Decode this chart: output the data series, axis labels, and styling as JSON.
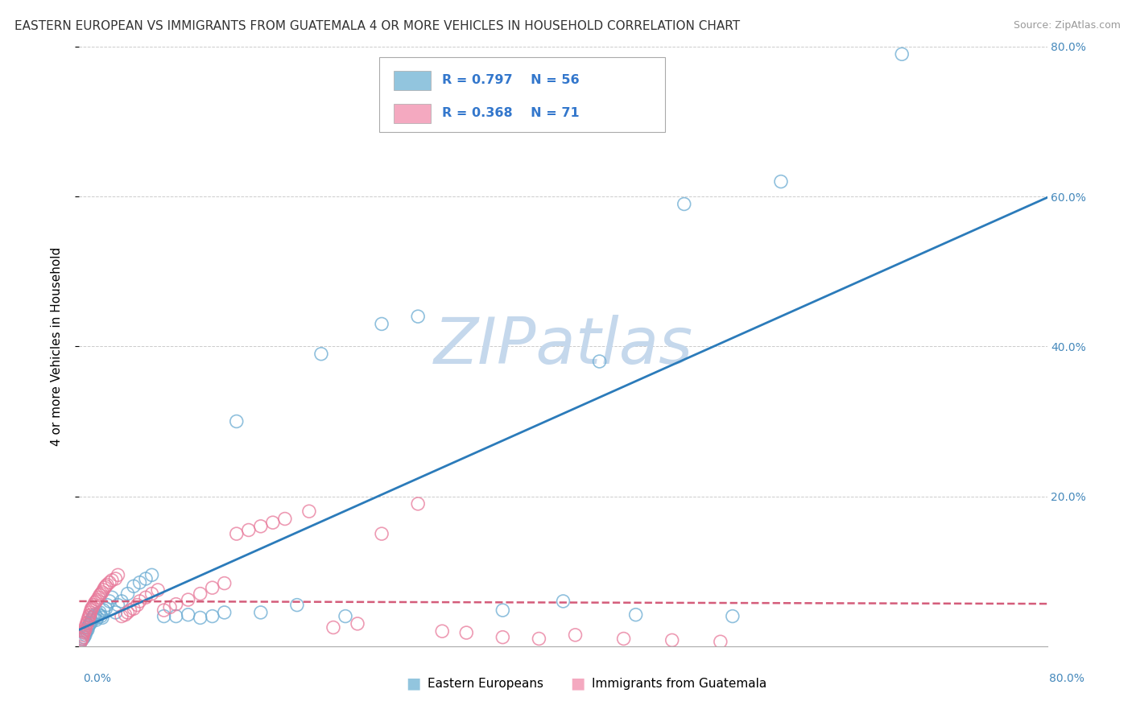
{
  "title": "EASTERN EUROPEAN VS IMMIGRANTS FROM GUATEMALA 4 OR MORE VEHICLES IN HOUSEHOLD CORRELATION CHART",
  "source": "Source: ZipAtlas.com",
  "ylabel": "4 or more Vehicles in Household",
  "xlim": [
    0.0,
    0.8
  ],
  "ylim": [
    0.0,
    0.8
  ],
  "yticks": [
    0.0,
    0.2,
    0.4,
    0.6,
    0.8
  ],
  "ytick_labels": [
    "",
    "20.0%",
    "40.0%",
    "60.0%",
    "80.0%"
  ],
  "watermark": "ZIPatlas",
  "blue": {
    "label": "Eastern Europeans",
    "R": 0.797,
    "N": 56,
    "scatter_facecolor": "none",
    "scatter_edgecolor": "#6aabd2",
    "line_color": "#2b7bba",
    "line_style": "solid",
    "x": [
      0.001,
      0.002,
      0.003,
      0.004,
      0.005,
      0.005,
      0.006,
      0.007,
      0.007,
      0.008,
      0.009,
      0.01,
      0.01,
      0.011,
      0.012,
      0.013,
      0.014,
      0.015,
      0.016,
      0.017,
      0.018,
      0.019,
      0.02,
      0.022,
      0.023,
      0.025,
      0.027,
      0.03,
      0.032,
      0.035,
      0.04,
      0.045,
      0.05,
      0.055,
      0.06,
      0.07,
      0.08,
      0.09,
      0.1,
      0.11,
      0.12,
      0.13,
      0.15,
      0.18,
      0.2,
      0.22,
      0.25,
      0.28,
      0.35,
      0.4,
      0.43,
      0.46,
      0.5,
      0.54,
      0.58,
      0.68
    ],
    "y": [
      0.005,
      0.008,
      0.01,
      0.012,
      0.015,
      0.018,
      0.02,
      0.022,
      0.025,
      0.028,
      0.03,
      0.032,
      0.035,
      0.038,
      0.04,
      0.042,
      0.035,
      0.038,
      0.042,
      0.045,
      0.04,
      0.038,
      0.048,
      0.05,
      0.055,
      0.06,
      0.065,
      0.045,
      0.055,
      0.06,
      0.07,
      0.08,
      0.085,
      0.09,
      0.095,
      0.04,
      0.04,
      0.042,
      0.038,
      0.04,
      0.045,
      0.3,
      0.045,
      0.055,
      0.39,
      0.04,
      0.43,
      0.44,
      0.048,
      0.06,
      0.38,
      0.042,
      0.59,
      0.04,
      0.62,
      0.79
    ]
  },
  "pink": {
    "label": "Immigrants from Guatemala",
    "R": 0.368,
    "N": 71,
    "scatter_facecolor": "none",
    "scatter_edgecolor": "#e8799a",
    "line_color": "#d45c7a",
    "line_style": "dashed",
    "x": [
      0.001,
      0.002,
      0.002,
      0.003,
      0.003,
      0.004,
      0.004,
      0.005,
      0.005,
      0.006,
      0.006,
      0.007,
      0.007,
      0.008,
      0.008,
      0.009,
      0.009,
      0.01,
      0.01,
      0.011,
      0.012,
      0.013,
      0.014,
      0.015,
      0.016,
      0.017,
      0.018,
      0.019,
      0.02,
      0.021,
      0.022,
      0.023,
      0.025,
      0.027,
      0.03,
      0.032,
      0.035,
      0.038,
      0.04,
      0.042,
      0.045,
      0.048,
      0.05,
      0.055,
      0.06,
      0.065,
      0.07,
      0.075,
      0.08,
      0.09,
      0.1,
      0.11,
      0.12,
      0.13,
      0.14,
      0.15,
      0.16,
      0.17,
      0.19,
      0.21,
      0.23,
      0.25,
      0.28,
      0.3,
      0.32,
      0.35,
      0.38,
      0.41,
      0.45,
      0.49,
      0.53
    ],
    "y": [
      0.005,
      0.008,
      0.01,
      0.012,
      0.015,
      0.018,
      0.02,
      0.022,
      0.025,
      0.028,
      0.03,
      0.032,
      0.035,
      0.038,
      0.04,
      0.042,
      0.045,
      0.048,
      0.05,
      0.052,
      0.055,
      0.058,
      0.06,
      0.062,
      0.065,
      0.068,
      0.07,
      0.072,
      0.075,
      0.078,
      0.08,
      0.082,
      0.085,
      0.088,
      0.09,
      0.095,
      0.04,
      0.042,
      0.045,
      0.048,
      0.05,
      0.055,
      0.06,
      0.065,
      0.07,
      0.075,
      0.048,
      0.052,
      0.056,
      0.062,
      0.07,
      0.078,
      0.084,
      0.15,
      0.155,
      0.16,
      0.165,
      0.17,
      0.18,
      0.025,
      0.03,
      0.15,
      0.19,
      0.02,
      0.018,
      0.012,
      0.01,
      0.015,
      0.01,
      0.008,
      0.006
    ]
  },
  "legend_box_facecolor": "#ffffff",
  "legend_box_edgecolor": "#aaaaaa",
  "legend_marker_blue": "#92c5de",
  "legend_marker_pink": "#f4a9c0",
  "legend_text_color": "#3377cc",
  "background_color": "#ffffff",
  "grid_color": "#cccccc",
  "title_fontsize": 11,
  "source_fontsize": 9,
  "watermark_color": "#c5d8ec",
  "watermark_fontsize": 58,
  "scatter_size": 130,
  "scatter_linewidth": 1.2,
  "scatter_alpha": 0.75
}
